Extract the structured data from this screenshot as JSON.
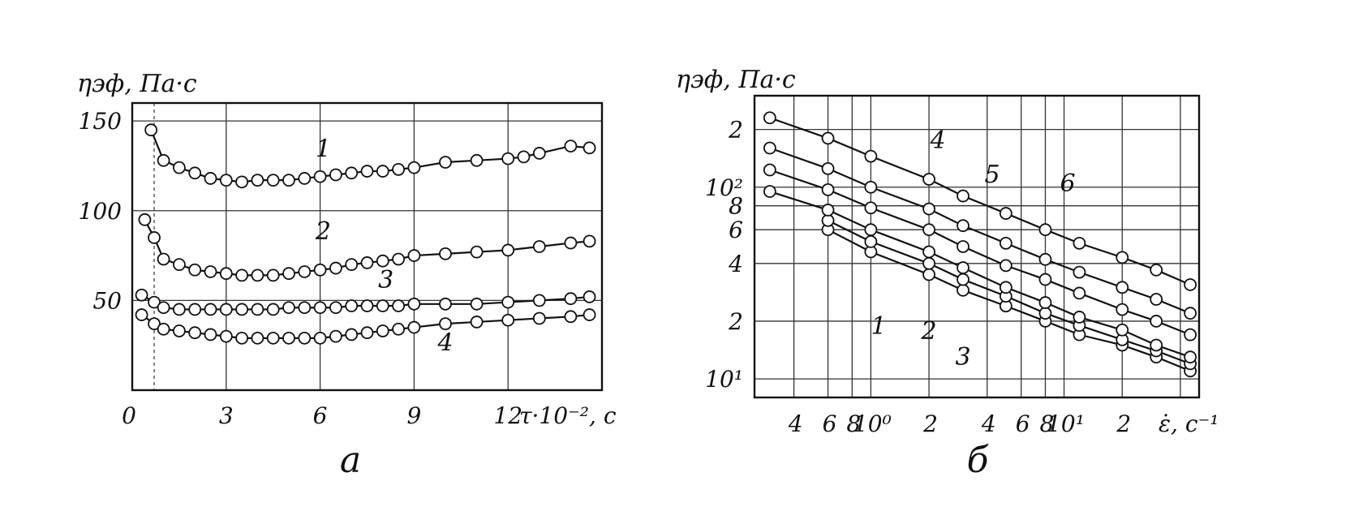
{
  "chart_data": [
    {
      "type": "line",
      "panel_label": "а",
      "ylabel": "ηэф, Па·с",
      "xlabel": "τ·10⁻², с",
      "x_ticks": [
        "0",
        "3",
        "6",
        "9",
        "12"
      ],
      "y_ticks": [
        "50",
        "100",
        "150"
      ],
      "x_range": [
        0,
        15
      ],
      "y_range": [
        0,
        160
      ],
      "grid": true,
      "series": [
        {
          "name": "1",
          "x": [
            0.6,
            1.0,
            1.5,
            2.0,
            2.5,
            3.0,
            3.5,
            4.0,
            4.5,
            5.0,
            5.5,
            6.0,
            6.5,
            7.0,
            7.5,
            8.0,
            8.5,
            9.0,
            10.0,
            11.0,
            12.0,
            12.5,
            13.0,
            14.0,
            14.6
          ],
          "y": [
            145,
            128,
            124,
            121,
            118,
            117,
            116,
            117,
            117,
            117,
            118,
            119,
            120,
            121,
            122,
            122,
            123,
            124,
            127,
            128,
            129,
            130,
            132,
            136,
            135
          ]
        },
        {
          "name": "2",
          "x": [
            0.4,
            0.7,
            1.0,
            1.5,
            2.0,
            2.5,
            3.0,
            3.5,
            4.0,
            4.5,
            5.0,
            5.5,
            6.0,
            6.5,
            7.0,
            7.5,
            8.0,
            8.5,
            9.0,
            10.0,
            11.0,
            12.0,
            13.0,
            14.0,
            14.6
          ],
          "y": [
            95,
            85,
            73,
            70,
            67,
            66,
            65,
            64,
            64,
            64,
            65,
            66,
            67,
            68,
            70,
            71,
            72,
            73,
            75,
            76,
            77,
            78,
            80,
            82,
            83
          ]
        },
        {
          "name": "3",
          "x": [
            0.3,
            0.7,
            1.0,
            1.5,
            2.0,
            2.5,
            3.0,
            3.5,
            4.0,
            4.5,
            5.0,
            5.5,
            6.0,
            6.5,
            7.0,
            7.5,
            8.0,
            8.5,
            9.0,
            10.0,
            11.0,
            12.0,
            13.0,
            14.0,
            14.6
          ],
          "y": [
            53,
            49,
            46,
            45,
            45,
            45,
            45,
            45,
            45,
            45,
            46,
            46,
            46,
            46,
            47,
            47,
            47,
            47,
            48,
            48,
            48,
            49,
            50,
            51,
            52
          ]
        },
        {
          "name": "4",
          "x": [
            0.3,
            0.7,
            1.0,
            1.5,
            2.0,
            2.5,
            3.0,
            3.5,
            4.0,
            4.5,
            5.0,
            5.5,
            6.0,
            6.5,
            7.0,
            7.5,
            8.0,
            8.5,
            9.0,
            10.0,
            11.0,
            12.0,
            13.0,
            14.0,
            14.6
          ],
          "y": [
            42,
            37,
            34,
            33,
            32,
            31,
            30,
            29,
            29,
            29,
            29,
            29,
            29,
            30,
            31,
            32,
            33,
            34,
            35,
            37,
            38,
            39,
            40,
            41,
            42
          ]
        }
      ]
    },
    {
      "type": "line",
      "panel_label": "б",
      "ylabel": "ηэф, Па·с",
      "xlabel": "ε̇, с⁻¹",
      "x_scale": "log",
      "y_scale": "log",
      "x_ticks": [
        "4",
        "6",
        "8",
        "10⁰",
        "2",
        "4",
        "6",
        "8",
        "10¹",
        "2"
      ],
      "y_ticks": [
        "10¹",
        "2",
        "4",
        "6",
        "8",
        "10²",
        "2"
      ],
      "x_range": [
        0.25,
        50
      ],
      "y_range": [
        8,
        300
      ],
      "grid": true,
      "series": [
        {
          "name": "1",
          "x": [
            0.6,
            1.0,
            2.0,
            3.0,
            5.0,
            8.0,
            12.0,
            20.0,
            30.0,
            45.0
          ],
          "y": [
            60,
            46,
            35,
            29,
            24,
            20,
            17,
            15,
            13,
            11
          ]
        },
        {
          "name": "2",
          "x": [
            0.6,
            1.0,
            2.0,
            3.0,
            5.0,
            8.0,
            12.0,
            20.0,
            30.0,
            45.0
          ],
          "y": [
            67,
            52,
            40,
            33,
            27,
            22,
            19,
            16,
            14,
            12
          ]
        },
        {
          "name": "3",
          "x": [
            0.3,
            0.6,
            1.0,
            2.0,
            3.0,
            5.0,
            8.0,
            12.0,
            20.0,
            30.0,
            45.0
          ],
          "y": [
            95,
            76,
            60,
            46,
            38,
            30,
            25,
            21,
            18,
            15,
            13
          ]
        },
        {
          "name": "4",
          "x": [
            0.3,
            0.6,
            1.0,
            2.0,
            3.0,
            5.0,
            8.0,
            12.0,
            20.0,
            30.0,
            45.0
          ],
          "y": [
            123,
            97,
            78,
            60,
            49,
            39,
            33,
            28,
            23,
            20,
            17
          ]
        },
        {
          "name": "5",
          "x": [
            0.3,
            0.6,
            1.0,
            2.0,
            3.0,
            5.0,
            8.0,
            12.0,
            20.0,
            30.0,
            45.0
          ],
          "y": [
            160,
            125,
            100,
            77,
            63,
            51,
            42,
            36,
            30,
            26,
            22
          ]
        },
        {
          "name": "6",
          "x": [
            0.3,
            0.6,
            1.0,
            2.0,
            3.0,
            5.0,
            8.0,
            12.0,
            20.0,
            30.0,
            45.0
          ],
          "y": [
            230,
            180,
            145,
            110,
            90,
            73,
            60,
            51,
            43,
            37,
            31
          ]
        }
      ]
    }
  ]
}
